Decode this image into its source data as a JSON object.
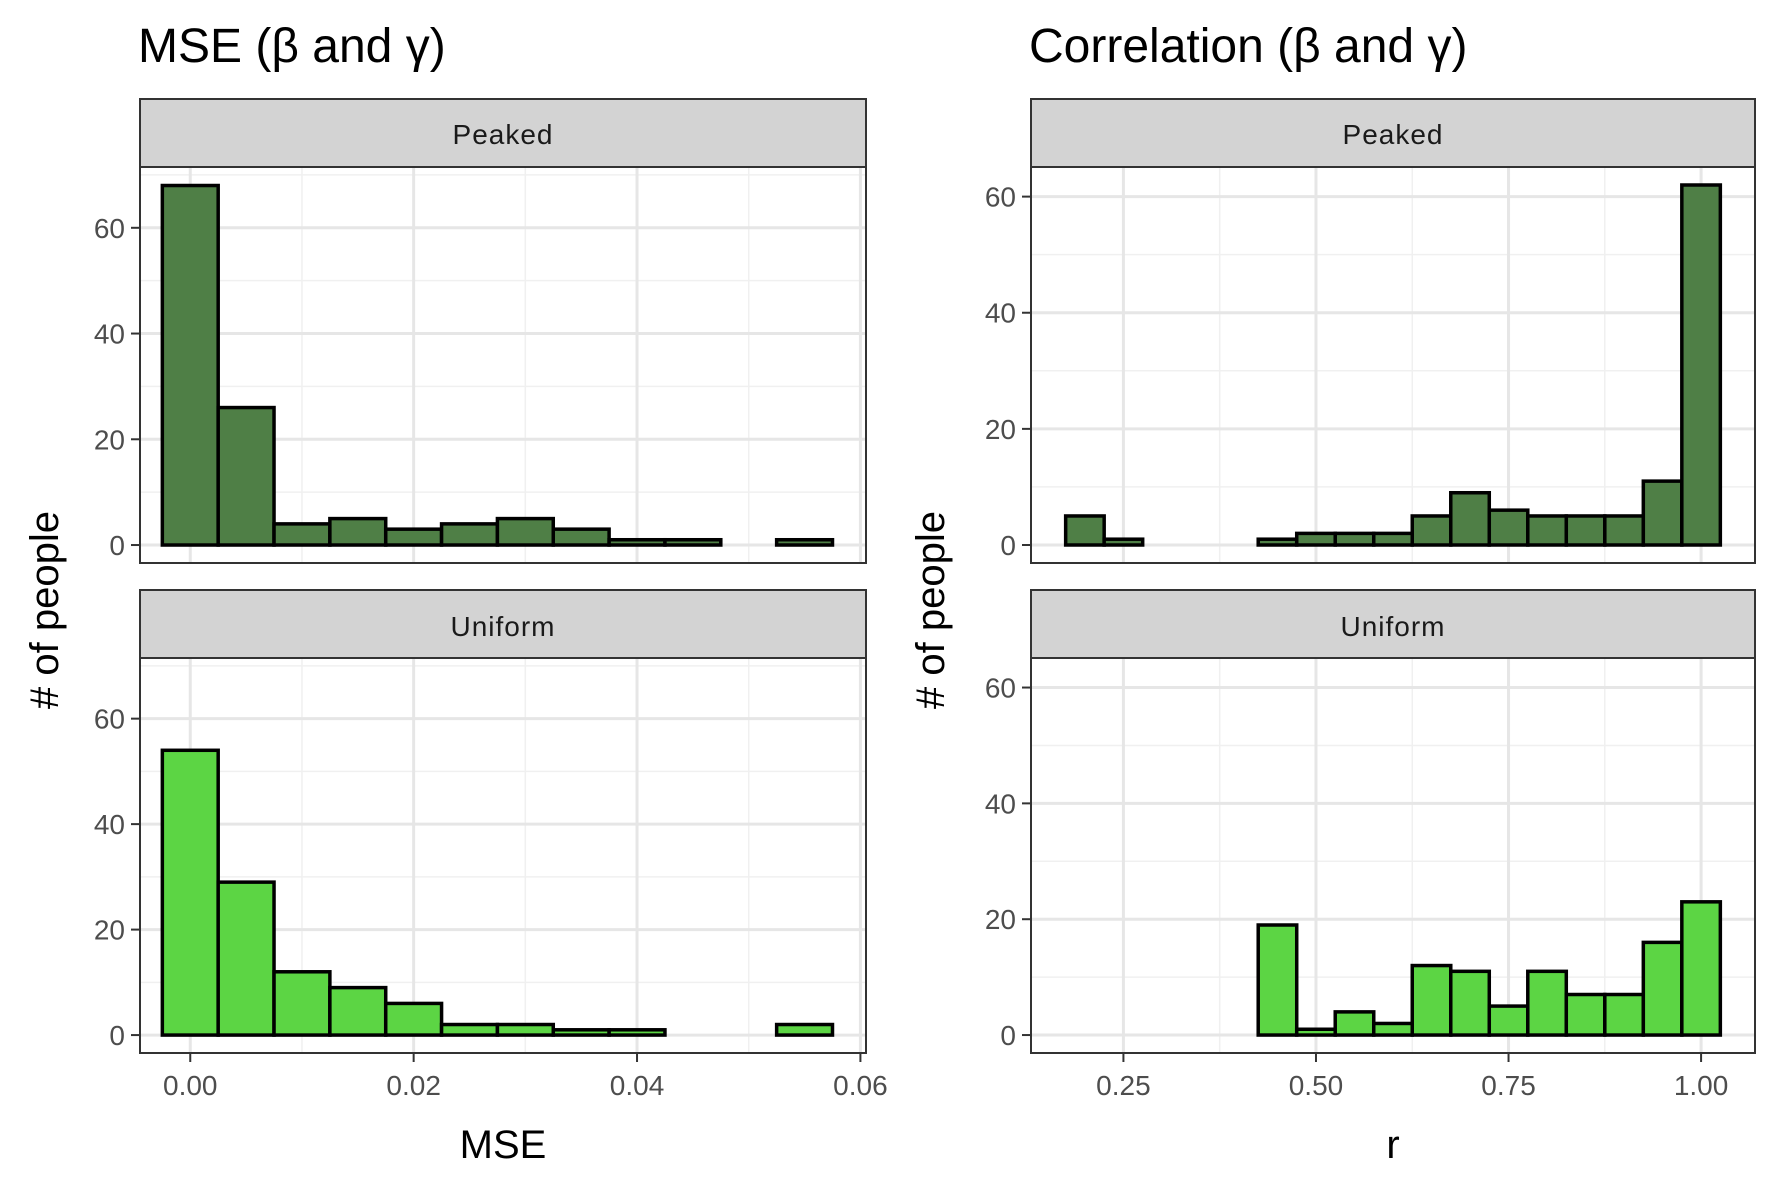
{
  "chart_data": [
    {
      "type": "bar",
      "title": "MSE (β and γ)",
      "xlabel": "MSE",
      "ylabel": "# of people",
      "xlim": [
        -0.0045,
        0.0605
      ],
      "xticks": [
        0.0,
        0.02,
        0.04,
        0.06
      ],
      "xtick_labels": [
        "0.00",
        "0.02",
        "0.04",
        "0.06"
      ],
      "ylim": [
        -3.4,
        71.5
      ],
      "yticks": [
        0,
        20,
        40,
        60
      ],
      "ytick_labels": [
        "0",
        "20",
        "40",
        "60"
      ],
      "bin_width": 0.005,
      "bin_centers": [
        0.0,
        0.005,
        0.01,
        0.015,
        0.02,
        0.025,
        0.03,
        0.035,
        0.04,
        0.045,
        0.05,
        0.055
      ],
      "grid": true,
      "facets": [
        {
          "label": "Peaked",
          "color": "#4f7f46",
          "counts": [
            68,
            26,
            4,
            5,
            3,
            4,
            5,
            3,
            1,
            1,
            0,
            1
          ]
        },
        {
          "label": "Uniform",
          "color": "#5cd544",
          "counts": [
            54,
            29,
            12,
            9,
            6,
            2,
            2,
            1,
            1,
            0,
            0,
            2
          ]
        }
      ]
    },
    {
      "type": "bar",
      "title": "Correlation (β and γ)",
      "xlabel": "r",
      "ylabel": "# of people",
      "xlim": [
        0.13,
        1.07
      ],
      "xticks": [
        0.25,
        0.5,
        0.75,
        1.0
      ],
      "xtick_labels": [
        "0.25",
        "0.50",
        "0.75",
        "1.00"
      ],
      "ylim": [
        -3.1,
        65.1
      ],
      "yticks": [
        0,
        20,
        40,
        60
      ],
      "ytick_labels": [
        "0",
        "20",
        "40",
        "60"
      ],
      "bin_width": 0.05,
      "bin_centers": [
        0.2,
        0.25,
        0.3,
        0.35,
        0.4,
        0.45,
        0.5,
        0.55,
        0.6,
        0.65,
        0.7,
        0.75,
        0.8,
        0.85,
        0.9,
        0.95,
        1.0
      ],
      "grid": true,
      "facets": [
        {
          "label": "Peaked",
          "color": "#4f7f46",
          "counts": [
            5,
            1,
            0,
            0,
            0,
            1,
            2,
            2,
            2,
            5,
            9,
            6,
            5,
            5,
            5,
            11,
            62
          ]
        },
        {
          "label": "Uniform",
          "color": "#5cd544",
          "counts": [
            0,
            0,
            0,
            0,
            0,
            19,
            1,
            4,
            2,
            12,
            11,
            5,
            11,
            7,
            7,
            16,
            23
          ]
        }
      ]
    }
  ]
}
